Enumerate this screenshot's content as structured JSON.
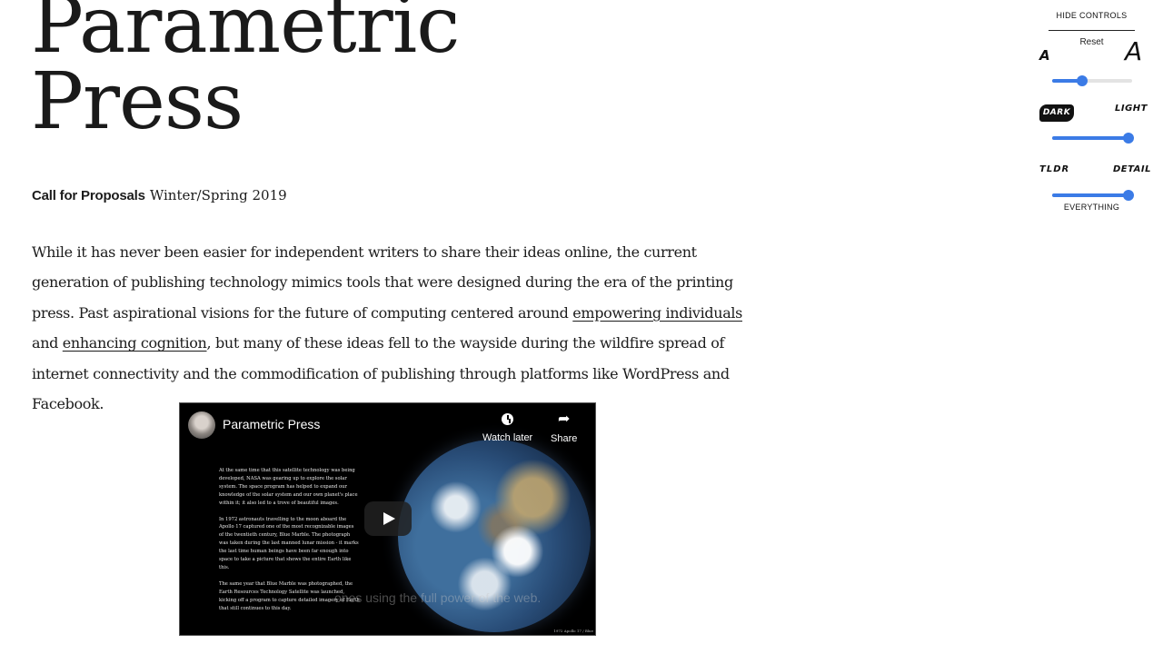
{
  "title": {
    "line1": "Parametric",
    "line2": "Press"
  },
  "call_for_proposals": {
    "label": "Call for Proposals",
    "season": "Winter/Spring 2019"
  },
  "intro": {
    "part1": "While it has never been easier for independent writers to share their ideas online, the current generation of publishing technology mimics tools that were designed during the era of the printing press. Past aspirational visions for the future of computing centered around ",
    "link1": "empowering individuals",
    "part2": " and ",
    "link2": "enhancing cognition",
    "part3": ", but many of these ideas fell to the wayside during the wildfire spread of internet connectivity and the commodification of publishing through platforms like WordPress and Facebook."
  },
  "video": {
    "channel_title": "Parametric Press",
    "watch_later": "Watch later",
    "share": "Share",
    "paragraphs": [
      "At the same time that this satellite technology was being developed, NASA was gearing up to explore the solar system. The space program has helped to expand our knowledge of the solar system and our own planet's place within it; it also led to a trove of beautiful images.",
      "In 1972 astronauts travelling to the moon aboard the Apollo 17 captured one of the most recognizable images of the twentieth century, Blue Marble. The photograph was taken during the last manned lunar mission - it marks the last time human beings have been far enough into space to take a picture that shows the entire Earth like this.",
      "The same year that Blue Marble was photographed, the Earth Resources Technology Satellite was launched, kicking off a program to capture detailed imagery of Earth that still continues to this day."
    ],
    "caption": "ones using the full power of the web.",
    "credit": "1972 Apollo 17 / Blue",
    "icons": {
      "watch_later": "clock-icon",
      "share": "share-arrow-icon",
      "play": "play-icon"
    }
  },
  "controls": {
    "hide_label": "HIDE CONTROLS",
    "reset_label": "Reset",
    "font_size": {
      "min_label": "A",
      "max_label": "A",
      "value_fraction": 0.37
    },
    "theme": {
      "min_label": "DARK",
      "max_label": "LIGHT",
      "value_fraction": 0.95
    },
    "detail": {
      "min_label": "TLDR",
      "max_label": "DETAIL",
      "value_fraction": 0.95,
      "value_label": "EVERYTHING"
    },
    "accent_color": "#3b7be6"
  }
}
